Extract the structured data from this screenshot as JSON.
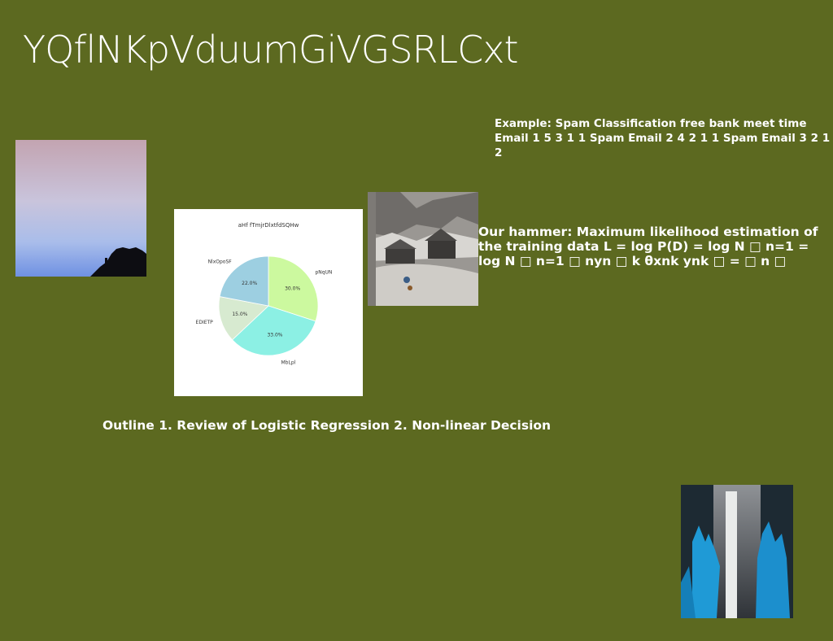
{
  "slide": {
    "title": "YQflNKpVduumGiVGSRLCxt",
    "spam_example": "Example: Spam Classification free bank meet time Email 1 5 3 1 1 Spam Email 2 4 2 1 1 Spam Email 3 2 1 2",
    "hammer": "Our hammer: Maximum likelihood estimation of the training data L = log P(D) = log N □ n=1 = log N □ n=1 □ nyn □ k θxnk ynk □ = □ n □",
    "outline": "Outline 1. Review of Logistic Regression 2. Non-linear Decision"
  },
  "chart_data": {
    "type": "pie",
    "title": "aHf fTmjrDlxtfdSQHw",
    "slices": [
      {
        "label": "pNqUN",
        "value": 30.0,
        "display": "30.0%",
        "color": "#ccf99f"
      },
      {
        "label": "MbLpl",
        "value": 33.0,
        "display": "33.0%",
        "color": "#8cf0e4"
      },
      {
        "label": "EDIETP",
        "value": 15.0,
        "display": "15.0%",
        "color": "#d7ead0"
      },
      {
        "label": "NlxOpoSF",
        "value": 22.0,
        "display": "22.0%",
        "color": "#9dcfe1"
      }
    ]
  },
  "images": {
    "sky": "sky-photo",
    "snow_village": "snow-village-painting",
    "waterfall": "waterfall-forest-photo"
  }
}
